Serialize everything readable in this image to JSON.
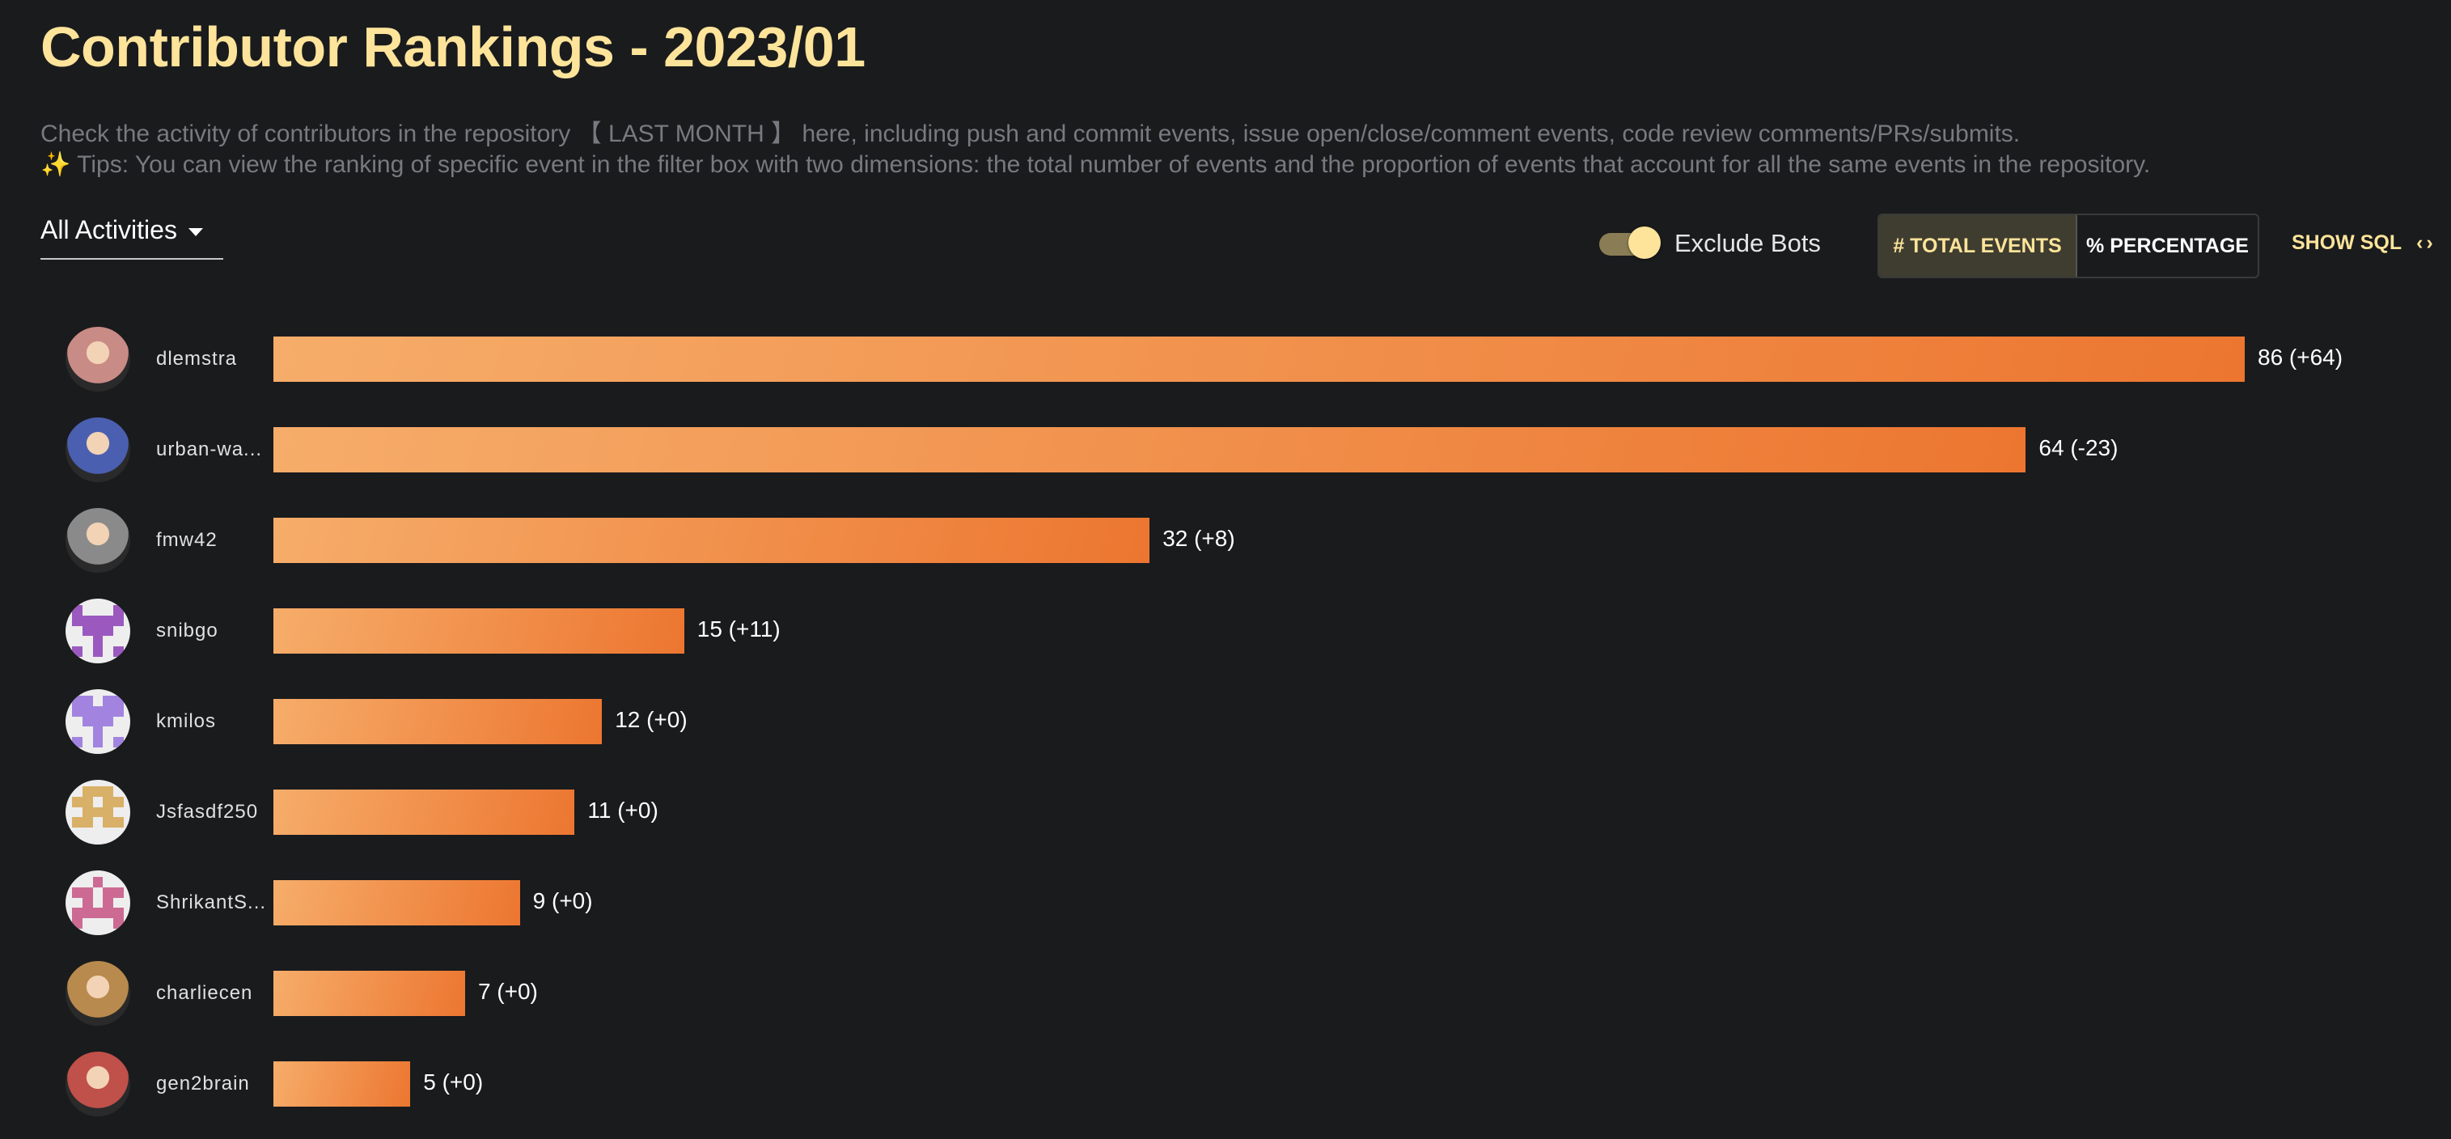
{
  "header": {
    "title": "Contributor Rankings - 2023/01",
    "description": "Check the activity of contributors in the repository 【 LAST MONTH 】 here, including push and commit events, issue open/close/comment events, code review comments/PRs/submits.",
    "tips_icon": "sparkles-icon",
    "tips": "✨ Tips: You can view the ranking of specific event in the filter box with two dimensions: the total number of events and the proportion of events that account for all the same events in the repository."
  },
  "controls": {
    "activity_filter": "All Activities",
    "exclude_bots_label": "Exclude Bots",
    "exclude_bots_on": true,
    "mode_total": "# TOTAL EVENTS",
    "mode_percentage": "% PERCENTAGE",
    "active_mode": "total",
    "show_sql": "SHOW SQL",
    "show_sql_icon": "‹›"
  },
  "colors": {
    "accent": "#fde49a",
    "bar_start": "#f6ad6a",
    "bar_end": "#ec7630",
    "background": "#1a1b1d"
  },
  "chart_data": {
    "type": "bar",
    "orientation": "horizontal",
    "categories": [
      "dlemstra",
      "urban-wa...",
      "fmw42",
      "snibgo",
      "kmilos",
      "Jsfasdf250",
      "ShrikantS...",
      "charliecen",
      "gen2brain"
    ],
    "values": [
      86,
      64,
      32,
      15,
      12,
      11,
      9,
      7,
      5
    ],
    "changes": [
      "+64",
      "-23",
      "+8",
      "+11",
      "+0",
      "+0",
      "+0",
      "+0",
      "+0"
    ],
    "labels": [
      "86 (+64)",
      "64 (-23)",
      "32 (+8)",
      "15 (+11)",
      "12 (+0)",
      "11 (+0)",
      "9 (+0)",
      "7 (+0)",
      "5 (+0)"
    ],
    "avatars": [
      {
        "kind": "photo",
        "color": "#c98b86"
      },
      {
        "kind": "photo",
        "color": "#4a5fb0"
      },
      {
        "kind": "photo",
        "color": "#8a8a8a"
      },
      {
        "kind": "identicon",
        "color": "#9b59c0"
      },
      {
        "kind": "identicon",
        "color": "#a284e0"
      },
      {
        "kind": "identicon",
        "color": "#d9b067"
      },
      {
        "kind": "identicon",
        "color": "#cc6a94"
      },
      {
        "kind": "photo",
        "color": "#b98a4e"
      },
      {
        "kind": "photo",
        "color": "#c0504a"
      }
    ],
    "grid": false,
    "legend": "none"
  }
}
